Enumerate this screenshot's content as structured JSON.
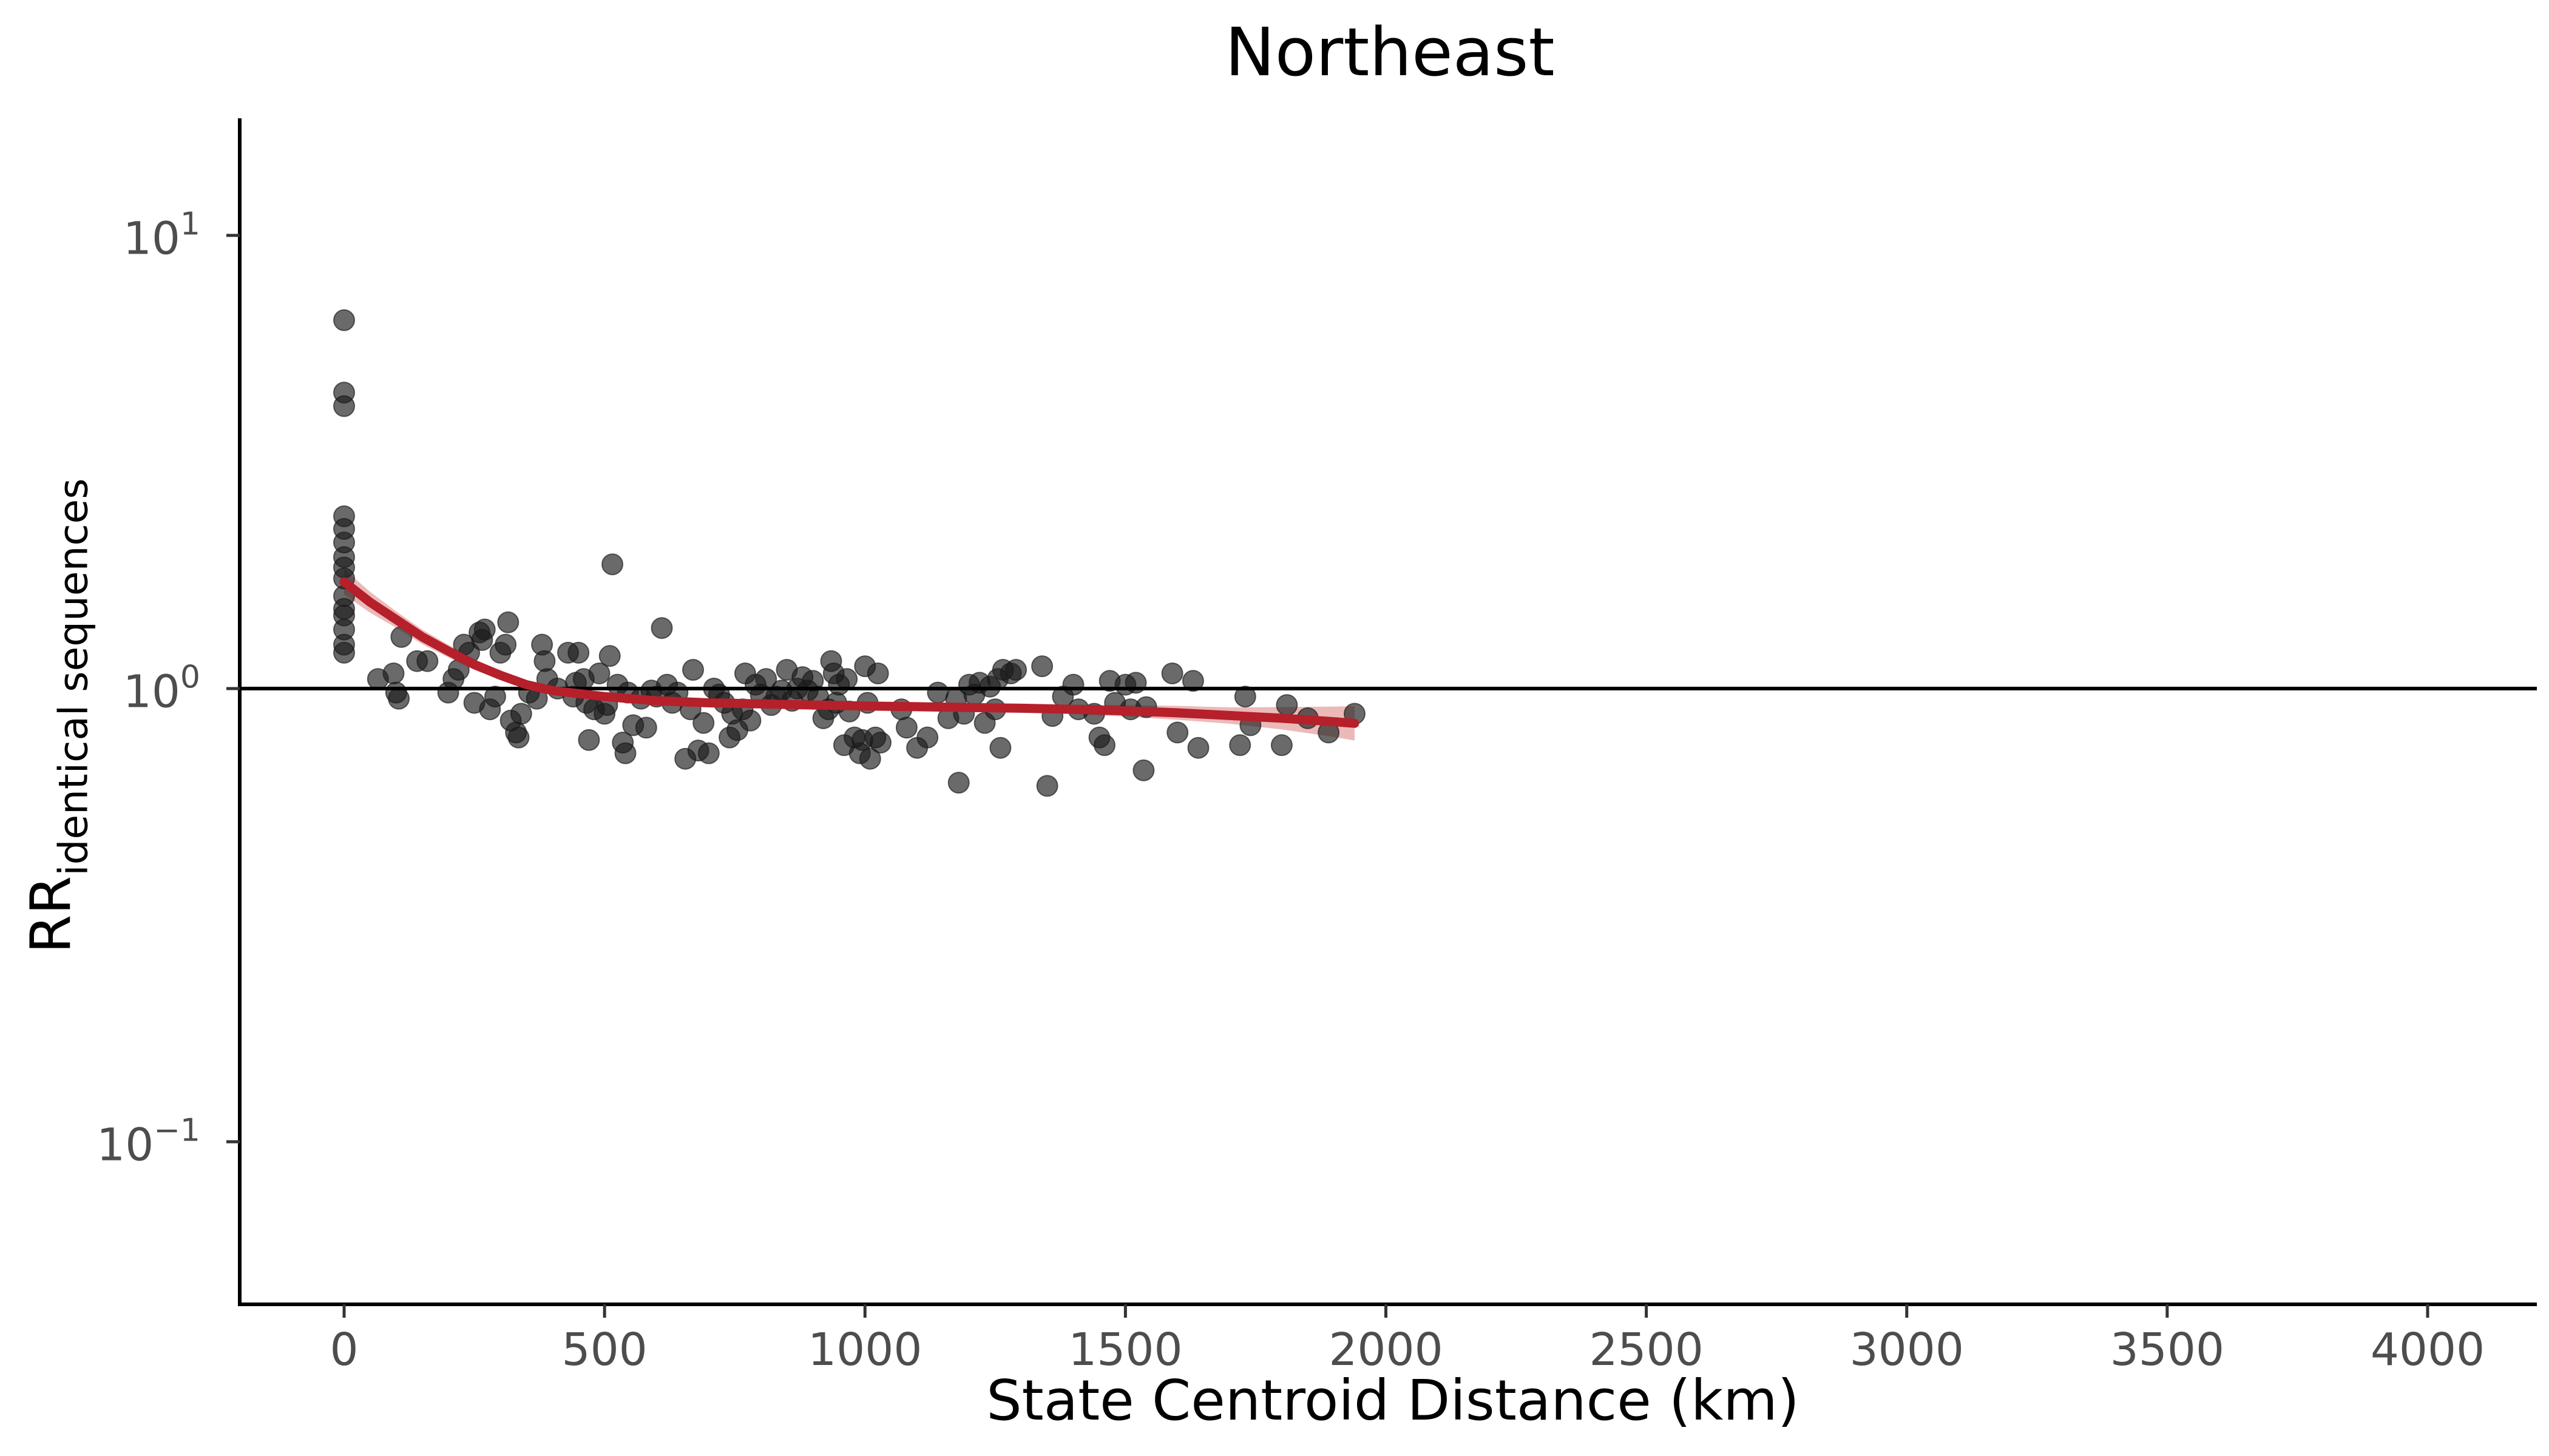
{
  "chart_data": {
    "type": "scatter",
    "title": "Northeast",
    "xlabel": "State Centroid Distance (km)",
    "ylabel": {
      "base": "RR",
      "subscript": "identical sequences"
    },
    "xlim": [
      -200,
      4200
    ],
    "xticks": [
      "0",
      "500",
      "1000",
      "1500",
      "2000",
      "2500",
      "3000",
      "3500",
      "4000"
    ],
    "xtick_values": [
      0,
      500,
      1000,
      1500,
      2000,
      2500,
      3000,
      3500,
      4000
    ],
    "yscale": "log",
    "ylim": [
      0.045,
      18
    ],
    "yticks": [
      {
        "value": 10,
        "base": "10",
        "exp": "1"
      },
      {
        "value": 1,
        "base": "10",
        "exp": "0"
      },
      {
        "value": 0.1,
        "base": "10",
        "exp": "−1"
      }
    ],
    "reference_line": {
      "y": 1
    },
    "colors": {
      "points": "#1a1a1a",
      "fit": "#b5202a",
      "ci": "#e08a8a",
      "axis": "#000000"
    },
    "grid": false,
    "legend": "none",
    "points": [
      [
        0,
        6.5
      ],
      [
        0,
        4.5
      ],
      [
        0,
        4.2
      ],
      [
        0,
        2.4
      ],
      [
        0,
        2.25
      ],
      [
        0,
        2.1
      ],
      [
        0,
        1.95
      ],
      [
        0,
        1.85
      ],
      [
        0,
        1.75
      ],
      [
        0,
        1.6
      ],
      [
        0,
        1.5
      ],
      [
        0,
        1.45
      ],
      [
        0,
        1.35
      ],
      [
        0,
        1.25
      ],
      [
        0,
        1.2
      ],
      [
        65,
        1.05
      ],
      [
        95,
        1.08
      ],
      [
        100,
        0.98
      ],
      [
        105,
        0.95
      ],
      [
        110,
        1.3
      ],
      [
        140,
        1.15
      ],
      [
        160,
        1.15
      ],
      [
        200,
        0.98
      ],
      [
        210,
        1.05
      ],
      [
        220,
        1.1
      ],
      [
        230,
        1.25
      ],
      [
        240,
        1.2
      ],
      [
        250,
        0.93
      ],
      [
        260,
        1.33
      ],
      [
        265,
        1.28
      ],
      [
        270,
        1.35
      ],
      [
        280,
        0.9
      ],
      [
        290,
        0.96
      ],
      [
        300,
        1.2
      ],
      [
        310,
        1.25
      ],
      [
        315,
        1.4
      ],
      [
        320,
        0.85
      ],
      [
        330,
        0.8
      ],
      [
        335,
        0.78
      ],
      [
        340,
        0.88
      ],
      [
        355,
        0.98
      ],
      [
        370,
        0.95
      ],
      [
        380,
        1.25
      ],
      [
        385,
        1.15
      ],
      [
        390,
        1.05
      ],
      [
        410,
        1.0
      ],
      [
        430,
        1.2
      ],
      [
        440,
        0.96
      ],
      [
        445,
        1.03
      ],
      [
        450,
        1.2
      ],
      [
        460,
        1.05
      ],
      [
        465,
        0.93
      ],
      [
        470,
        0.77
      ],
      [
        480,
        0.9
      ],
      [
        490,
        1.08
      ],
      [
        500,
        0.88
      ],
      [
        505,
        0.92
      ],
      [
        510,
        1.18
      ],
      [
        515,
        1.88
      ],
      [
        525,
        1.02
      ],
      [
        535,
        0.76
      ],
      [
        540,
        0.72
      ],
      [
        545,
        0.98
      ],
      [
        555,
        0.83
      ],
      [
        570,
        0.95
      ],
      [
        580,
        0.82
      ],
      [
        590,
        0.99
      ],
      [
        600,
        0.96
      ],
      [
        610,
        1.36
      ],
      [
        620,
        1.02
      ],
      [
        630,
        0.93
      ],
      [
        640,
        0.98
      ],
      [
        655,
        0.7
      ],
      [
        665,
        0.9
      ],
      [
        670,
        1.1
      ],
      [
        680,
        0.73
      ],
      [
        690,
        0.84
      ],
      [
        700,
        0.72
      ],
      [
        710,
        1.0
      ],
      [
        720,
        0.97
      ],
      [
        730,
        0.93
      ],
      [
        740,
        0.78
      ],
      [
        745,
        0.88
      ],
      [
        755,
        0.81
      ],
      [
        765,
        0.9
      ],
      [
        770,
        1.08
      ],
      [
        780,
        0.85
      ],
      [
        790,
        1.02
      ],
      [
        800,
        0.97
      ],
      [
        810,
        1.05
      ],
      [
        820,
        0.92
      ],
      [
        830,
        0.96
      ],
      [
        840,
        0.99
      ],
      [
        850,
        1.1
      ],
      [
        860,
        0.94
      ],
      [
        870,
        1.0
      ],
      [
        880,
        1.06
      ],
      [
        890,
        0.99
      ],
      [
        900,
        1.04
      ],
      [
        910,
        0.96
      ],
      [
        920,
        0.86
      ],
      [
        930,
        0.9
      ],
      [
        935,
        1.15
      ],
      [
        940,
        1.08
      ],
      [
        945,
        0.93
      ],
      [
        950,
        1.02
      ],
      [
        960,
        0.75
      ],
      [
        965,
        1.05
      ],
      [
        970,
        0.89
      ],
      [
        980,
        0.78
      ],
      [
        990,
        0.72
      ],
      [
        995,
        0.77
      ],
      [
        1000,
        1.12
      ],
      [
        1005,
        0.93
      ],
      [
        1010,
        0.7
      ],
      [
        1020,
        0.78
      ],
      [
        1025,
        1.08
      ],
      [
        1030,
        0.76
      ],
      [
        1070,
        0.9
      ],
      [
        1080,
        0.82
      ],
      [
        1100,
        0.74
      ],
      [
        1120,
        0.78
      ],
      [
        1140,
        0.98
      ],
      [
        1160,
        0.86
      ],
      [
        1175,
        0.95
      ],
      [
        1180,
        0.62
      ],
      [
        1190,
        0.88
      ],
      [
        1200,
        1.02
      ],
      [
        1210,
        0.97
      ],
      [
        1220,
        1.03
      ],
      [
        1230,
        0.84
      ],
      [
        1240,
        1.01
      ],
      [
        1250,
        0.9
      ],
      [
        1255,
        1.05
      ],
      [
        1260,
        0.74
      ],
      [
        1265,
        1.1
      ],
      [
        1280,
        1.08
      ],
      [
        1290,
        1.1
      ],
      [
        1340,
        1.12
      ],
      [
        1350,
        0.61
      ],
      [
        1360,
        0.87
      ],
      [
        1380,
        0.96
      ],
      [
        1400,
        1.02
      ],
      [
        1410,
        0.9
      ],
      [
        1440,
        0.88
      ],
      [
        1450,
        0.78
      ],
      [
        1460,
        0.75
      ],
      [
        1470,
        1.04
      ],
      [
        1480,
        0.93
      ],
      [
        1500,
        1.02
      ],
      [
        1510,
        0.9
      ],
      [
        1520,
        1.03
      ],
      [
        1535,
        0.66
      ],
      [
        1540,
        0.91
      ],
      [
        1590,
        1.08
      ],
      [
        1600,
        0.8
      ],
      [
        1630,
        1.04
      ],
      [
        1640,
        0.74
      ],
      [
        1720,
        0.75
      ],
      [
        1730,
        0.96
      ],
      [
        1740,
        0.83
      ],
      [
        1800,
        0.75
      ],
      [
        1810,
        0.92
      ],
      [
        1850,
        0.86
      ],
      [
        1890,
        0.8
      ],
      [
        1940,
        0.88
      ]
    ],
    "fit_curve": [
      [
        0,
        1.72
      ],
      [
        50,
        1.55
      ],
      [
        100,
        1.42
      ],
      [
        150,
        1.3
      ],
      [
        200,
        1.21
      ],
      [
        250,
        1.13
      ],
      [
        300,
        1.07
      ],
      [
        350,
        1.02
      ],
      [
        400,
        0.99
      ],
      [
        500,
        0.96
      ],
      [
        600,
        0.94
      ],
      [
        700,
        0.93
      ],
      [
        800,
        0.925
      ],
      [
        900,
        0.92
      ],
      [
        1000,
        0.915
      ],
      [
        1100,
        0.912
      ],
      [
        1200,
        0.908
      ],
      [
        1300,
        0.905
      ],
      [
        1400,
        0.9
      ],
      [
        1500,
        0.893
      ],
      [
        1600,
        0.884
      ],
      [
        1700,
        0.872
      ],
      [
        1800,
        0.86
      ],
      [
        1900,
        0.845
      ],
      [
        1940,
        0.838
      ]
    ],
    "ci_halfwidth_log10": [
      [
        0,
        0.028
      ],
      [
        100,
        0.018
      ],
      [
        300,
        0.01
      ],
      [
        600,
        0.008
      ],
      [
        1000,
        0.008
      ],
      [
        1400,
        0.01
      ],
      [
        1700,
        0.018
      ],
      [
        1850,
        0.028
      ],
      [
        1940,
        0.038
      ]
    ]
  }
}
